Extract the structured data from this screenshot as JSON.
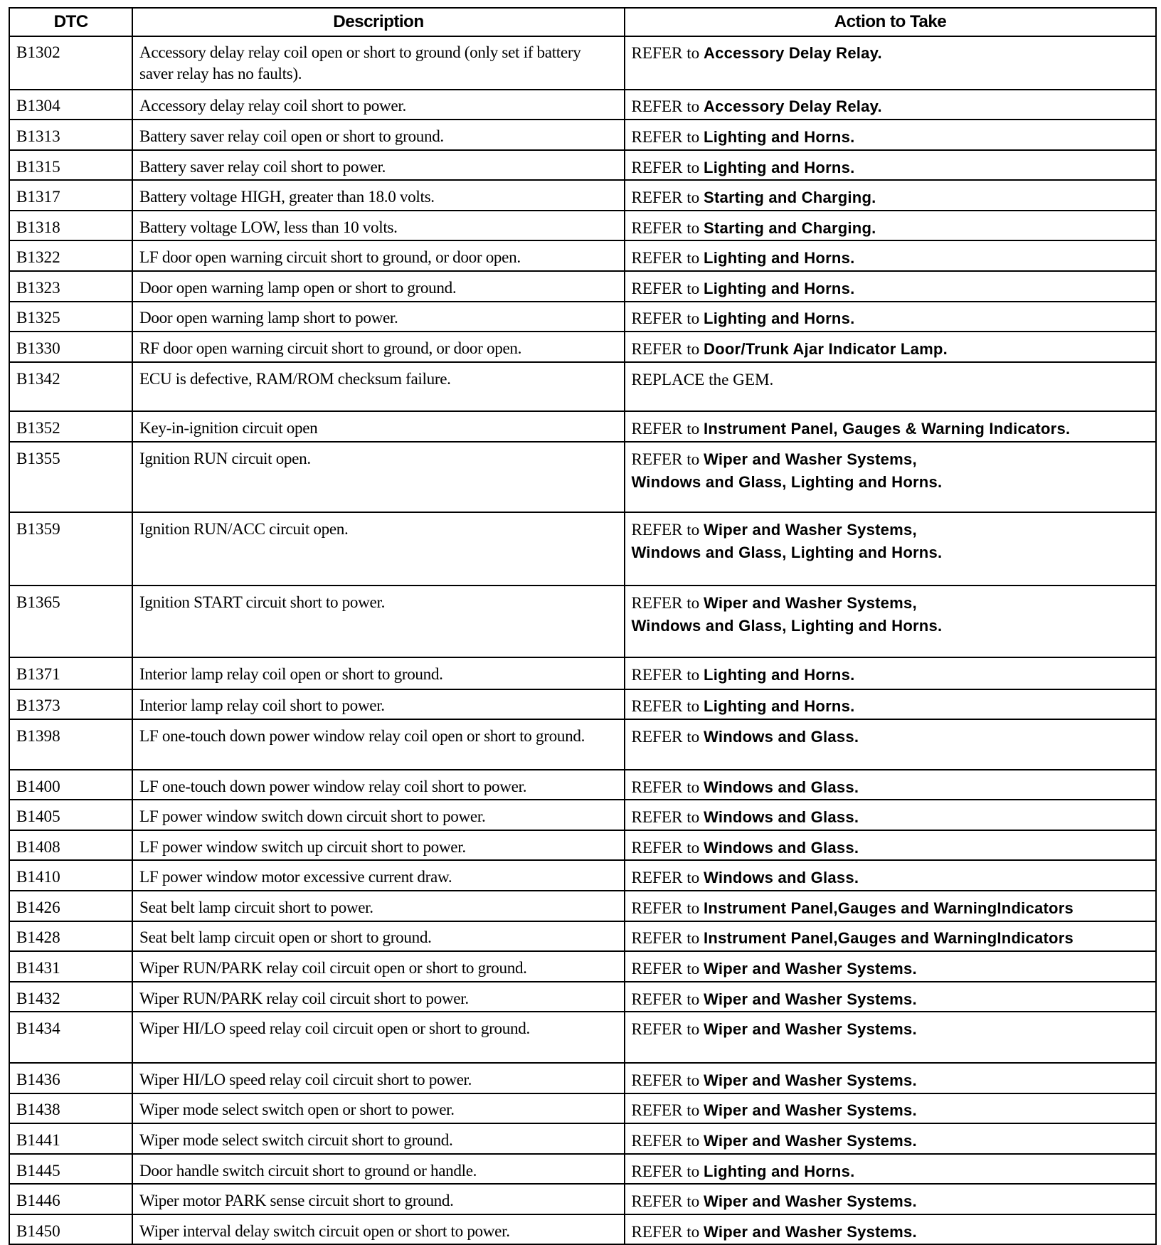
{
  "headers": {
    "dtc": "DTC",
    "description": "Description",
    "action": "Action to Take"
  },
  "rows": [
    {
      "dtc": "B1302",
      "description": "Accessory delay relay coil open or short to ground (only set if battery saver relay has no faults).",
      "action_prefix": "REFER to ",
      "action_target": "Accessory Delay Relay."
    },
    {
      "dtc": "B1304",
      "description": "Accessory delay relay coil short to power.",
      "action_prefix": "REFER to ",
      "action_target": "Accessory Delay Relay."
    },
    {
      "dtc": "B1313",
      "description": "Battery saver relay coil open or short to ground.",
      "action_prefix": "REFER to ",
      "action_target": "Lighting and Horns."
    },
    {
      "dtc": "B1315",
      "description": "Battery saver relay coil short to power.",
      "action_prefix": "REFER to ",
      "action_target": "Lighting and Horns."
    },
    {
      "dtc": "B1317",
      "description": "Battery voltage HIGH, greater than 18.0 volts.",
      "action_prefix": "REFER to ",
      "action_target": "Starting and Charging."
    },
    {
      "dtc": "B1318",
      "description": "Battery voltage LOW, less than 10 volts.",
      "action_prefix": "REFER to ",
      "action_target": "Starting and Charging."
    },
    {
      "dtc": "B1322",
      "description": "LF door open warning circuit short to ground, or door open.",
      "action_prefix": "REFER to ",
      "action_target": "Lighting and Horns."
    },
    {
      "dtc": "B1323",
      "description": "Door open warning lamp open or short to ground.",
      "action_prefix": "REFER to ",
      "action_target": "Lighting and Horns."
    },
    {
      "dtc": "B1325",
      "description": "Door open warning lamp short to power.",
      "action_prefix": "REFER to ",
      "action_target": "Lighting and Horns."
    },
    {
      "dtc": "B1330",
      "description": "RF door open warning circuit short to ground, or door open.",
      "action_prefix": "REFER to ",
      "action_target": "Door/Trunk Ajar Indicator Lamp."
    },
    {
      "dtc": "B1342",
      "description": "ECU is defective, RAM/ROM checksum failure.",
      "action_prefix": "REPLACE the GEM.",
      "action_target": ""
    },
    {
      "dtc": "B1352",
      "description": "Key-in-ignition circuit open",
      "action_prefix": "REFER to ",
      "action_target": "Instrument Panel, Gauges & Warning Indicators."
    },
    {
      "dtc": "B1355",
      "description": "Ignition RUN circuit open.",
      "action_prefix": "REFER to ",
      "action_target": "Wiper and Washer Systems, Windows and Glass, Lighting and Horns."
    },
    {
      "dtc": "B1359",
      "description": "Ignition RUN/ACC circuit open.",
      "action_prefix": "REFER to ",
      "action_target": "Wiper and Washer Systems, Windows and Glass, Lighting and Horns."
    },
    {
      "dtc": "B1365",
      "description": "Ignition START circuit short to power.",
      "action_prefix": "REFER to ",
      "action_target": "Wiper and Washer Systems, Windows and Glass, Lighting and Horns."
    },
    {
      "dtc": "B1371",
      "description": "Interior lamp relay coil open or short to ground.",
      "action_prefix": "REFER to ",
      "action_target": "Lighting and Horns."
    },
    {
      "dtc": "B1373",
      "description": "Interior lamp relay coil short to power.",
      "action_prefix": "REFER to ",
      "action_target": "Lighting and Horns."
    },
    {
      "dtc": "B1398",
      "description": "LF one-touch down power window relay coil open or short to ground.",
      "action_prefix": "REFER to ",
      "action_target": "Windows and Glass."
    },
    {
      "dtc": "B1400",
      "description": "LF one-touch down power window relay coil short to power.",
      "action_prefix": "REFER to ",
      "action_target": "Windows and Glass."
    },
    {
      "dtc": "B1405",
      "description": "LF power window switch down circuit short to power.",
      "action_prefix": "REFER to ",
      "action_target": "Windows and Glass."
    },
    {
      "dtc": "B1408",
      "description": "LF power window switch up circuit short to power.",
      "action_prefix": "REFER to ",
      "action_target": "Windows and Glass."
    },
    {
      "dtc": "B1410",
      "description": "LF power window motor excessive current draw.",
      "action_prefix": "REFER to ",
      "action_target": "Windows and Glass."
    },
    {
      "dtc": "B1426",
      "description": "Seat belt lamp circuit short to power.",
      "action_prefix": "REFER to ",
      "action_target": "Instrument Panel,Gauges and WarningIndicators"
    },
    {
      "dtc": "B1428",
      "description": "Seat belt lamp circuit open or short to ground.",
      "action_prefix": "REFER to ",
      "action_target": "Instrument Panel,Gauges and WarningIndicators"
    },
    {
      "dtc": "B1431",
      "description": "Wiper RUN/PARK relay coil circuit open or short to ground.",
      "action_prefix": "REFER to ",
      "action_target": "Wiper and Washer Systems."
    },
    {
      "dtc": "B1432",
      "description": "Wiper RUN/PARK relay coil circuit short to power.",
      "action_prefix": "REFER to ",
      "action_target": "Wiper and Washer Systems."
    },
    {
      "dtc": "B1434",
      "description": "Wiper HI/LO speed relay coil circuit open or short to ground.",
      "action_prefix": "REFER to ",
      "action_target": "Wiper and Washer Systems."
    },
    {
      "dtc": "B1436",
      "description": "Wiper HI/LO speed relay coil circuit short to power.",
      "action_prefix": "REFER to ",
      "action_target": "Wiper and Washer Systems."
    },
    {
      "dtc": "B1438",
      "description": "Wiper mode select switch open or short to power.",
      "action_prefix": "REFER to ",
      "action_target": "Wiper and Washer Systems."
    },
    {
      "dtc": "B1441",
      "description": "Wiper mode select switch circuit short to ground.",
      "action_prefix": "REFER to ",
      "action_target": "Wiper and Washer Systems."
    },
    {
      "dtc": "B1445",
      "description": "Door handle switch circuit short to ground or handle.",
      "action_prefix": "REFER to ",
      "action_target": "Lighting and Horns."
    },
    {
      "dtc": "B1446",
      "description": "Wiper motor PARK sense circuit short to ground.",
      "action_prefix": "REFER to ",
      "action_target": "Wiper and Washer Systems."
    },
    {
      "dtc": "B1450",
      "description": "Wiper interval delay switch circuit open or short to power.",
      "action_prefix": "REFER to ",
      "action_target": "Wiper and Washer Systems."
    }
  ]
}
